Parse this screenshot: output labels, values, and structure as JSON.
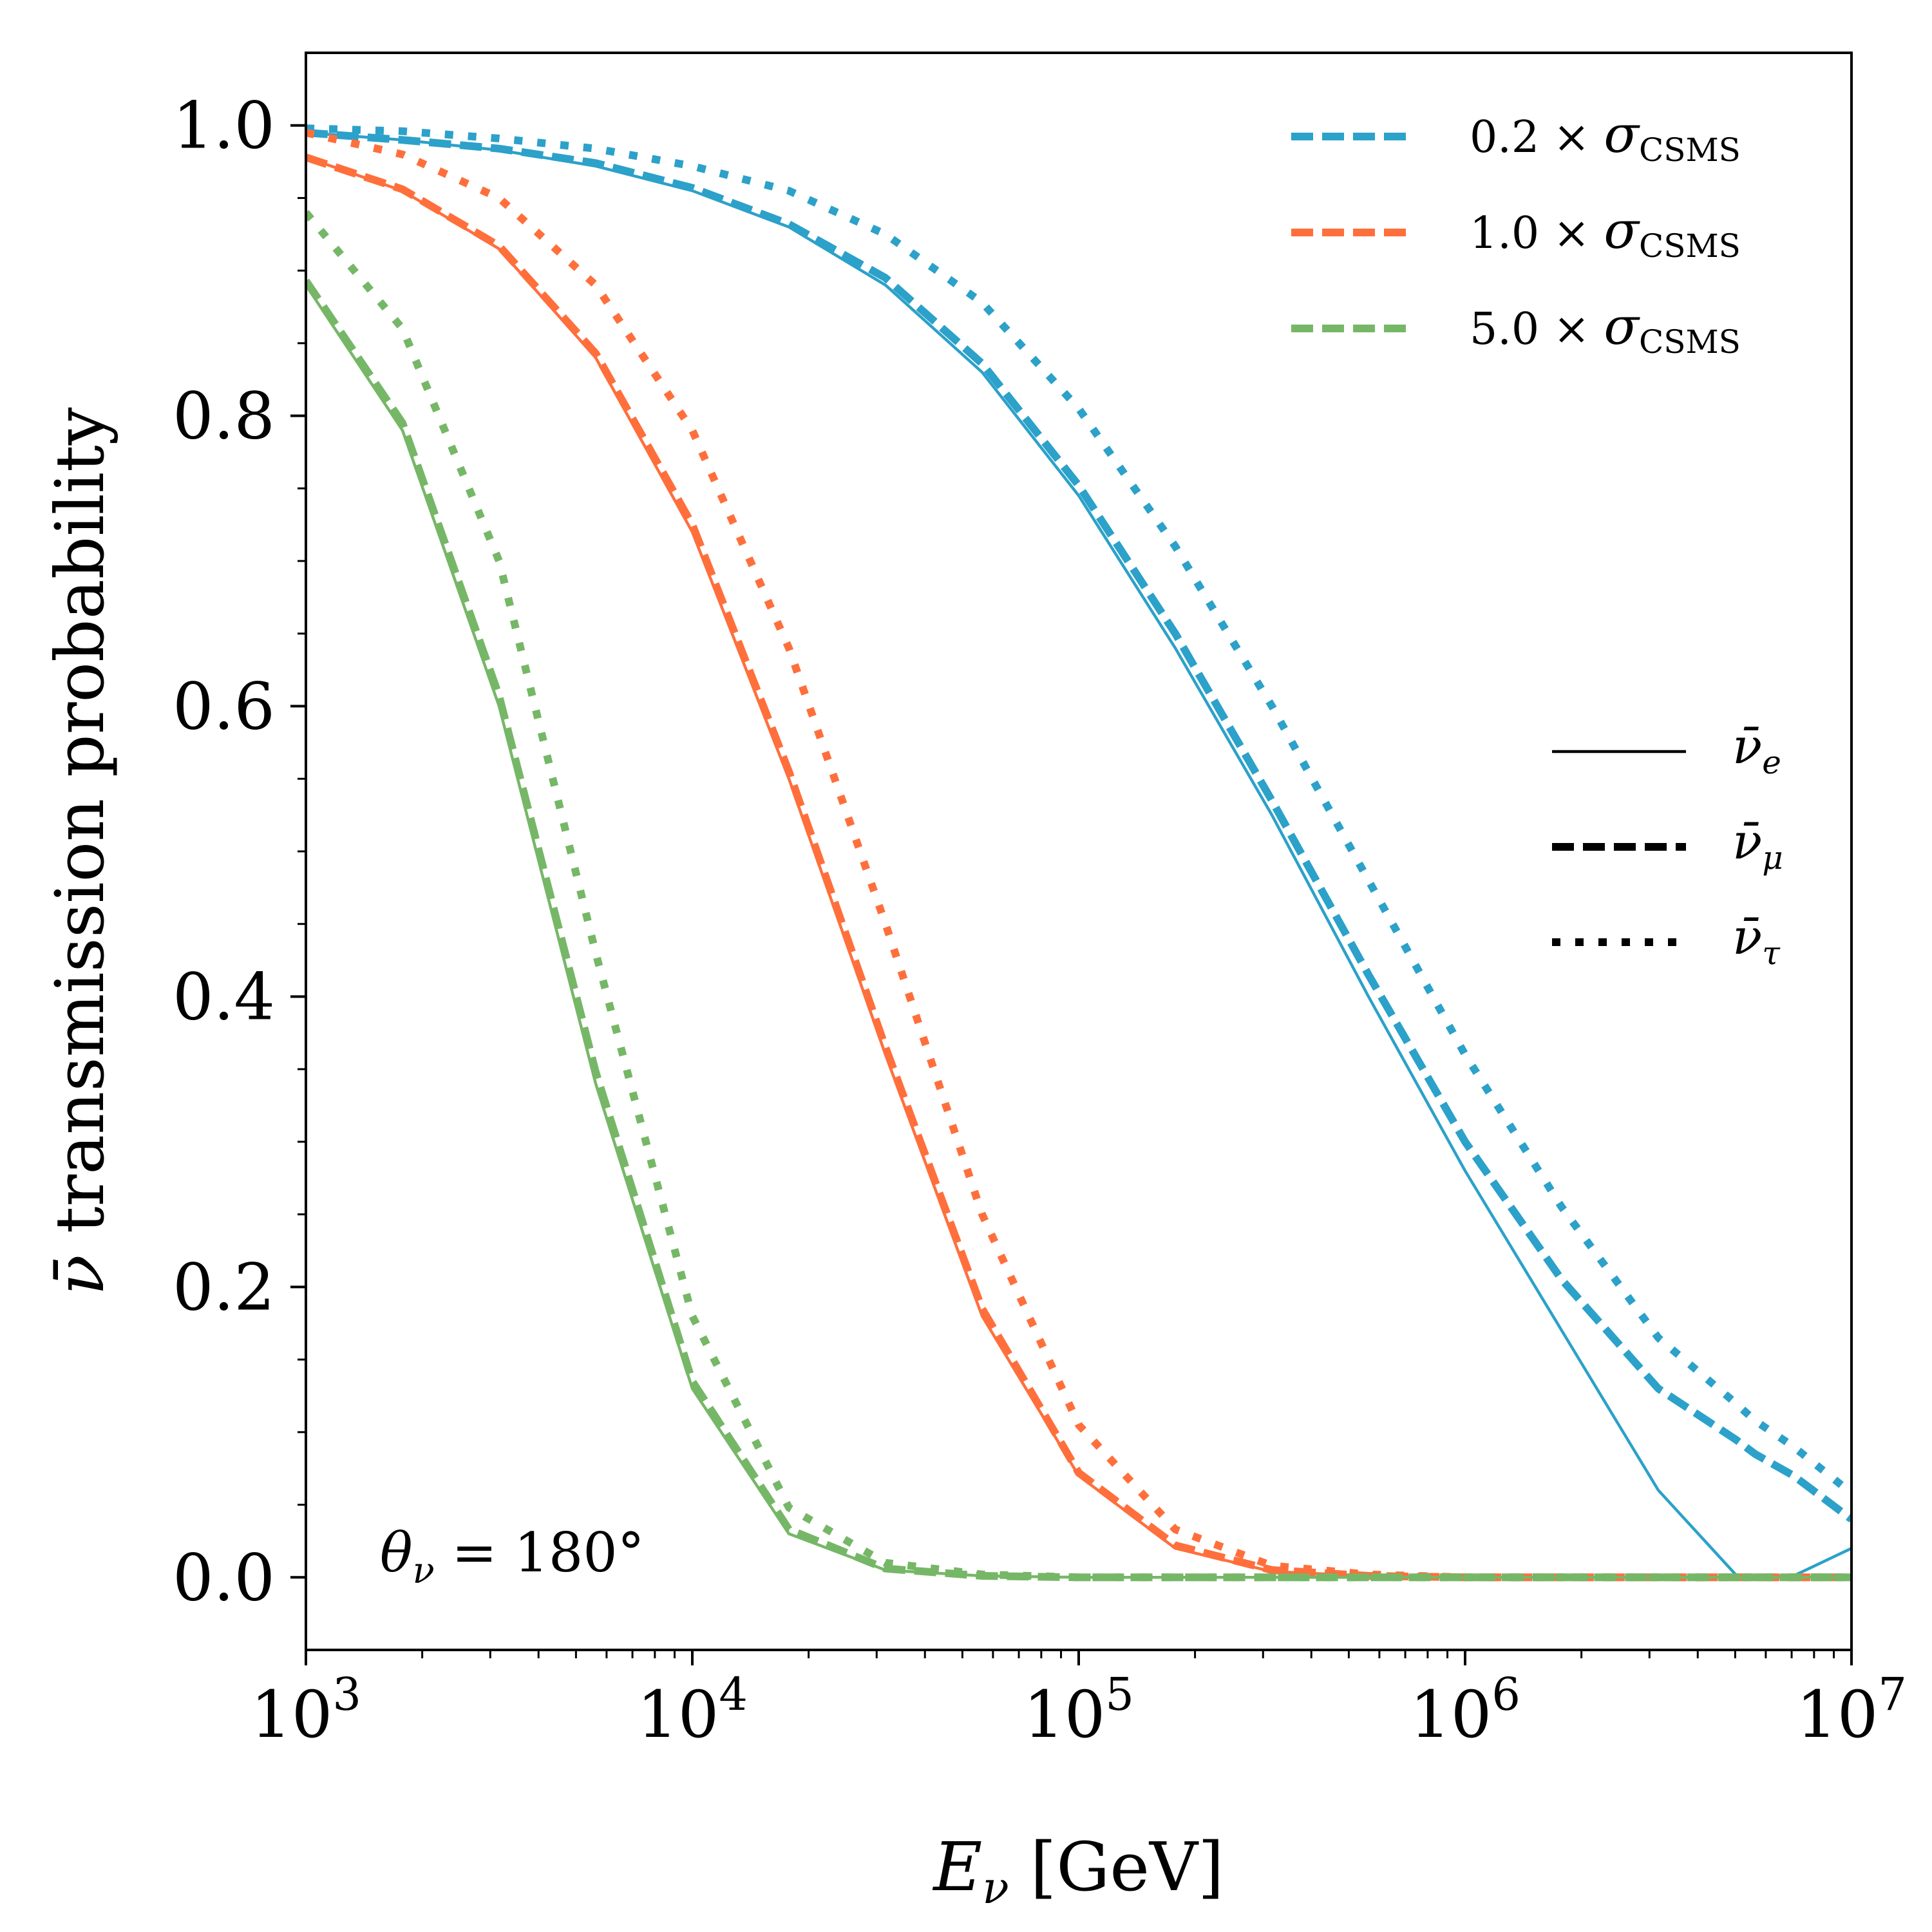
{
  "chart_data": {
    "type": "line",
    "title": "",
    "xlabel": "E_ν [GeV]",
    "xlabel_main": "E",
    "xlabel_sub": "ν",
    "xlabel_units": "[GeV]",
    "ylabel": "ν̄ transmission probability",
    "ylabel_symbol": "ν̄",
    "ylabel_text": "transmission probability",
    "x_scale": "log",
    "xlim": [
      1000,
      10000000
    ],
    "ylim": [
      -0.05,
      1.05
    ],
    "x_ticks": [
      {
        "value": 1000,
        "base": "10",
        "exp": "3"
      },
      {
        "value": 10000,
        "base": "10",
        "exp": "4"
      },
      {
        "value": 100000,
        "base": "10",
        "exp": "5"
      },
      {
        "value": 1000000,
        "base": "10",
        "exp": "6"
      },
      {
        "value": 10000000,
        "base": "10",
        "exp": "7"
      }
    ],
    "y_ticks": [
      {
        "value": 0.0,
        "label": "0.0"
      },
      {
        "value": 0.2,
        "label": "0.2"
      },
      {
        "value": 0.4,
        "label": "0.4"
      },
      {
        "value": 0.6,
        "label": "0.6"
      },
      {
        "value": 0.8,
        "label": "0.8"
      },
      {
        "value": 1.0,
        "label": "1.0"
      }
    ],
    "grid": false,
    "annotation": {
      "text": "θ_ν = 180°",
      "theta": "θ",
      "sub": "ν",
      "rest": " = 180°"
    },
    "color_legend": {
      "placement": "top-right",
      "entries": [
        {
          "coef": "0.2",
          "times": "×",
          "sigma": "σ",
          "sub": "CSMS",
          "color": "#2ca1c9"
        },
        {
          "coef": "1.0",
          "times": "×",
          "sigma": "σ",
          "sub": "CSMS",
          "color": "#ff6f3c"
        },
        {
          "coef": "5.0",
          "times": "×",
          "sigma": "σ",
          "sub": "CSMS",
          "color": "#76b767"
        }
      ]
    },
    "style_legend": {
      "placement": "center-right",
      "entries": [
        {
          "symbol": "ν̄",
          "sub": "e",
          "style": "solid"
        },
        {
          "symbol": "ν̄",
          "sub": "μ",
          "style": "dashed"
        },
        {
          "symbol": "ν̄",
          "sub": "τ",
          "style": "dotted"
        }
      ]
    },
    "x": [
      1000,
      1778,
      3162,
      5623,
      10000,
      17783,
      31623,
      56234,
      100000,
      177828,
      316228,
      562341,
      1000000,
      1778279,
      3162278,
      5011872,
      5623413,
      7079458,
      10000000
    ],
    "series": [
      {
        "name": "0.2 × σCSMS",
        "flavor": "e",
        "style": "solid",
        "color": "#2ca1c9",
        "values": [
          0.995,
          0.99,
          0.983,
          0.972,
          0.955,
          0.93,
          0.89,
          0.83,
          0.745,
          0.64,
          0.525,
          0.4,
          0.28,
          0.17,
          0.06,
          0.002,
          0.0,
          0.001,
          0.02
        ]
      },
      {
        "name": "0.2 × σCSMS",
        "flavor": "μ",
        "style": "dashed",
        "color": "#2ca1c9",
        "values": [
          0.995,
          0.99,
          0.984,
          0.974,
          0.957,
          0.932,
          0.895,
          0.836,
          0.752,
          0.65,
          0.535,
          0.415,
          0.3,
          0.205,
          0.13,
          0.095,
          0.085,
          0.07,
          0.04
        ]
      },
      {
        "name": "0.2 × σCSMS",
        "flavor": "τ",
        "style": "dotted",
        "color": "#2ca1c9",
        "values": [
          0.998,
          0.996,
          0.991,
          0.984,
          0.972,
          0.955,
          0.925,
          0.878,
          0.805,
          0.71,
          0.6,
          0.48,
          0.36,
          0.255,
          0.165,
          0.12,
          0.108,
          0.09,
          0.058
        ]
      },
      {
        "name": "1.0 × σCSMS",
        "flavor": "e",
        "style": "solid",
        "color": "#ff6f3c",
        "values": [
          0.978,
          0.955,
          0.915,
          0.84,
          0.72,
          0.55,
          0.36,
          0.18,
          0.07,
          0.02,
          0.004,
          0.001,
          0.0,
          0.0,
          0.0,
          0.0,
          0.0,
          0.0,
          0.0
        ]
      },
      {
        "name": "1.0 × σCSMS",
        "flavor": "μ",
        "style": "dashed",
        "color": "#ff6f3c",
        "values": [
          0.978,
          0.956,
          0.917,
          0.843,
          0.725,
          0.555,
          0.365,
          0.185,
          0.072,
          0.022,
          0.005,
          0.001,
          0.0,
          0.0,
          0.0,
          0.0,
          0.0,
          0.0,
          0.0
        ]
      },
      {
        "name": "1.0 × σCSMS",
        "flavor": "τ",
        "style": "dotted",
        "color": "#ff6f3c",
        "values": [
          0.995,
          0.98,
          0.95,
          0.89,
          0.79,
          0.64,
          0.45,
          0.25,
          0.105,
          0.033,
          0.008,
          0.002,
          0.0,
          0.0,
          0.0,
          0.0,
          0.0,
          0.0,
          0.0
        ]
      },
      {
        "name": "5.0 × σCSMS",
        "flavor": "e",
        "style": "solid",
        "color": "#76b767",
        "values": [
          0.89,
          0.79,
          0.6,
          0.34,
          0.13,
          0.03,
          0.005,
          0.001,
          0.0,
          0.0,
          0.0,
          0.0,
          0.0,
          0.0,
          0.0,
          0.0,
          0.0,
          0.0,
          0.0
        ]
      },
      {
        "name": "5.0 × σCSMS",
        "flavor": "μ",
        "style": "dashed",
        "color": "#76b767",
        "values": [
          0.893,
          0.795,
          0.607,
          0.348,
          0.135,
          0.033,
          0.006,
          0.001,
          0.0,
          0.0,
          0.0,
          0.0,
          0.0,
          0.0,
          0.0,
          0.0,
          0.0,
          0.0,
          0.0
        ]
      },
      {
        "name": "5.0 × σCSMS",
        "flavor": "τ",
        "style": "dotted",
        "color": "#76b767",
        "values": [
          0.94,
          0.86,
          0.7,
          0.43,
          0.18,
          0.048,
          0.01,
          0.002,
          0.0,
          0.0,
          0.0,
          0.0,
          0.0,
          0.0,
          0.0,
          0.0,
          0.0,
          0.0,
          0.0
        ]
      }
    ]
  }
}
